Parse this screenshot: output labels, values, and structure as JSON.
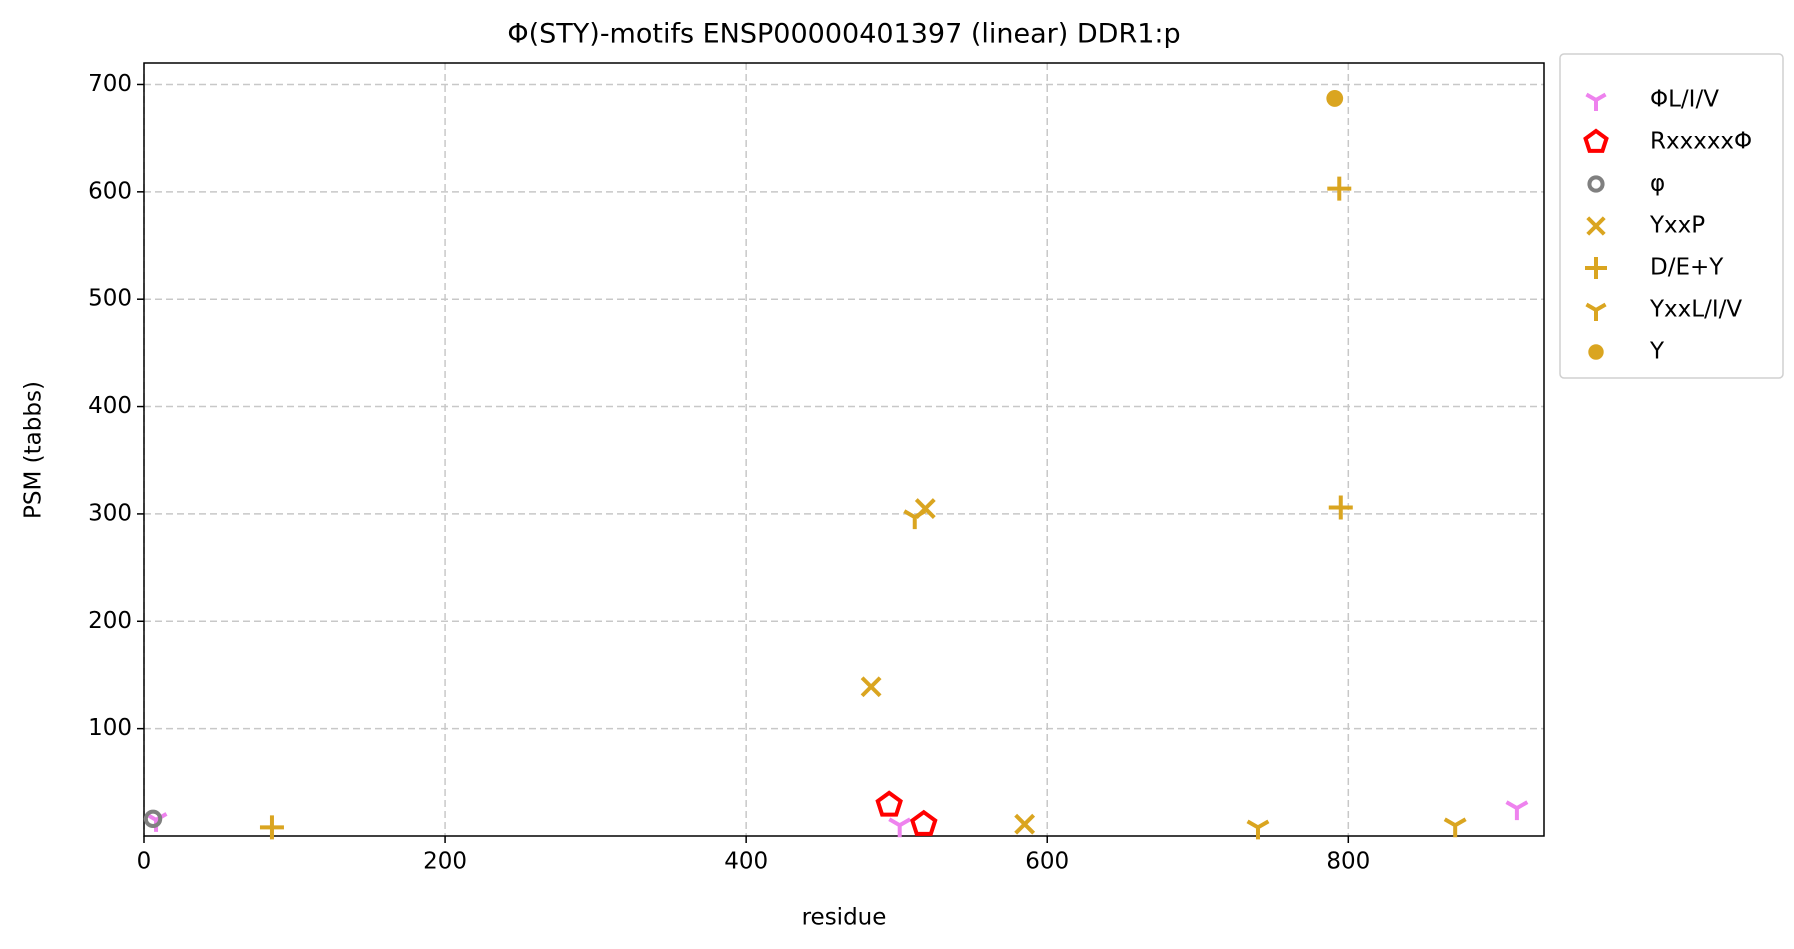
{
  "chart_data": {
    "type": "scatter",
    "title": "Φ(STY)-motifs ENSP00000401397 (linear) DDR1:p",
    "x_label": "residue",
    "y_label": "PSM (tabbs)",
    "xlim": [
      0,
      930
    ],
    "ylim": [
      0,
      720
    ],
    "xticks": [
      0,
      200,
      400,
      600,
      800
    ],
    "yticks": [
      100,
      200,
      300,
      400,
      500,
      600,
      700
    ],
    "grid": true,
    "legend": "outside upper right",
    "series": [
      {
        "name": "ΦL/I/V",
        "color": "#ee82ee",
        "marker": "tri_down",
        "x": [
          8,
          502,
          912
        ],
        "values": [
          15,
          10,
          26
        ]
      },
      {
        "name": "RxxxxxΦ",
        "color": "#ff0000",
        "marker": "pentagon",
        "x": [
          495,
          518
        ],
        "values": [
          29,
          11
        ]
      },
      {
        "name": "φ",
        "color": "#808080",
        "marker": "circle_open",
        "x": [
          6
        ],
        "values": [
          16
        ]
      },
      {
        "name": "YxxP",
        "color": "#daa520",
        "marker": "x",
        "x": [
          483,
          519,
          585
        ],
        "values": [
          139,
          305,
          11
        ]
      },
      {
        "name": "D/E+Y",
        "color": "#daa520",
        "marker": "plus",
        "x": [
          85,
          794,
          795
        ],
        "values": [
          8,
          603,
          306
        ]
      },
      {
        "name": "YxxL/I/V",
        "color": "#daa520",
        "marker": "tri_down",
        "x": [
          512,
          740,
          871
        ],
        "values": [
          297,
          8,
          10
        ]
      },
      {
        "name": "Y",
        "color": "#daa520",
        "marker": "circle",
        "x": [
          791
        ],
        "values": [
          687
        ]
      }
    ]
  }
}
